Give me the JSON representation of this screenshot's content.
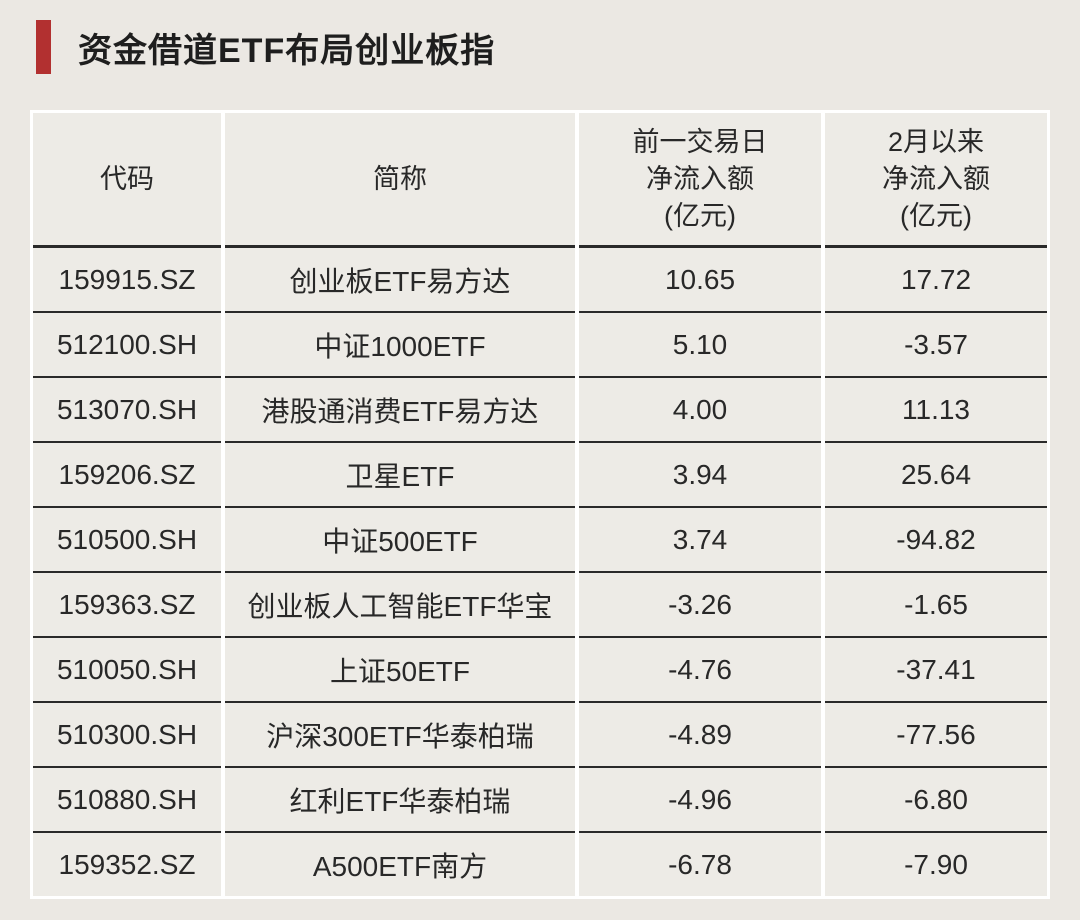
{
  "page": {
    "background_color": "#ebe8e3",
    "cell_background_color": "#edebe6",
    "row_separator_color": "#2a2a2a",
    "column_gap_color": "#ffffff",
    "accent_red": "#b23030",
    "text_color": "#282828"
  },
  "title": {
    "text": "资金借道ETF布局创业板指"
  },
  "chart_data": {
    "type": "table",
    "title": "资金借道ETF布局创业板指",
    "columns": [
      "代码",
      "简称",
      "前一交易日净流入额(亿元)",
      "2月以来净流入额(亿元)"
    ],
    "columns_display": [
      "代码",
      "简称",
      "前一交易日\n净流入额\n(亿元)",
      "2月以来\n净流入额\n(亿元)"
    ],
    "rows": [
      [
        "159915.SZ",
        "创业板ETF易方达",
        "10.65",
        "17.72"
      ],
      [
        "512100.SH",
        "中证1000ETF",
        "5.10",
        "-3.57"
      ],
      [
        "513070.SH",
        "港股通消费ETF易方达",
        "4.00",
        "11.13"
      ],
      [
        "159206.SZ",
        "卫星ETF",
        "3.94",
        "25.64"
      ],
      [
        "510500.SH",
        "中证500ETF",
        "3.74",
        "-94.82"
      ],
      [
        "159363.SZ",
        "创业板人工智能ETF华宝",
        "-3.26",
        "-1.65"
      ],
      [
        "510050.SH",
        "上证50ETF",
        "-4.76",
        "-37.41"
      ],
      [
        "510300.SH",
        "沪深300ETF华泰柏瑞",
        "-4.89",
        "-77.56"
      ],
      [
        "510880.SH",
        "红利ETF华泰柏瑞",
        "-4.96",
        "-6.80"
      ],
      [
        "159352.SZ",
        "A500ETF南方",
        "-6.78",
        "-7.90"
      ]
    ]
  }
}
